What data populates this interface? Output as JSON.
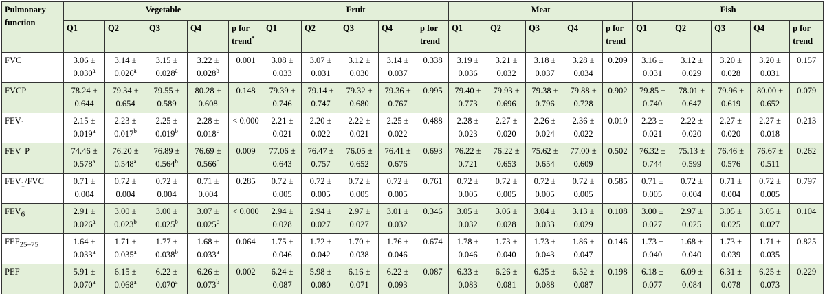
{
  "table": {
    "corner": "Pulmonary function",
    "groups": [
      {
        "name": "Vegetable",
        "columns": [
          "Q1",
          "Q2",
          "Q3",
          "Q4",
          {
            "text": "p for trend",
            "sup": "*"
          }
        ]
      },
      {
        "name": "Fruit",
        "columns": [
          "Q1",
          "Q2",
          "Q3",
          "Q4",
          {
            "text": "p for trend"
          }
        ]
      },
      {
        "name": "Meat",
        "columns": [
          "Q1",
          "Q2",
          "Q3",
          "Q4",
          {
            "text": "p for trend"
          }
        ]
      },
      {
        "name": "Fish",
        "columns": [
          "Q1",
          "Q2",
          "Q3",
          "Q4",
          {
            "text": "p for trend"
          }
        ]
      }
    ],
    "rows": [
      {
        "label": {
          "main": "FVC"
        },
        "groups": [
          {
            "q": [
              [
                "3.06 ±",
                "0.030",
                "a"
              ],
              [
                "3.14 ±",
                "0.026",
                "a"
              ],
              [
                "3.15 ±",
                "0.028",
                "a"
              ],
              [
                "3.22 ±",
                "0.028",
                "b"
              ]
            ],
            "p": "0.001"
          },
          {
            "q": [
              [
                "3.08 ±",
                "0.033"
              ],
              [
                "3.07 ±",
                "0.031"
              ],
              [
                "3.12 ±",
                "0.030"
              ],
              [
                "3.14 ±",
                "0.037"
              ]
            ],
            "p": "0.338"
          },
          {
            "q": [
              [
                "3.19 ±",
                "0.036"
              ],
              [
                "3.21 ±",
                "0.032"
              ],
              [
                "3.18 ±",
                "0.037"
              ],
              [
                "3.28 ±",
                "0.034"
              ]
            ],
            "p": "0.209"
          },
          {
            "q": [
              [
                "3.16 ±",
                "0.031"
              ],
              [
                "3.12 ±",
                "0.029"
              ],
              [
                "3.20 ±",
                "0.028"
              ],
              [
                "3.20 ±",
                "0.031"
              ]
            ],
            "p": "0.157"
          }
        ]
      },
      {
        "label": {
          "main": "FVCP"
        },
        "groups": [
          {
            "q": [
              [
                "78.24 ±",
                "0.644"
              ],
              [
                "79.34 ±",
                "0.654"
              ],
              [
                "79.55 ±",
                "0.589"
              ],
              [
                "80.28 ±",
                "0.608"
              ]
            ],
            "p": "0.148"
          },
          {
            "q": [
              [
                "79.39 ±",
                "0.746"
              ],
              [
                "79.14 ±",
                "0.747"
              ],
              [
                "79.32 ±",
                "0.680"
              ],
              [
                "79.36 ±",
                "0.767"
              ]
            ],
            "p": "0.995"
          },
          {
            "q": [
              [
                "79.40 ±",
                "0.773"
              ],
              [
                "79.93 ±",
                "0.696"
              ],
              [
                "79.38 ±",
                "0.796"
              ],
              [
                "79.88 ±",
                "0.728"
              ]
            ],
            "p": "0.902"
          },
          {
            "q": [
              [
                "79.85 ±",
                "0.740"
              ],
              [
                "78.01 ±",
                "0.647"
              ],
              [
                "79.96 ±",
                "0.619"
              ],
              [
                "80.00 ±",
                "0.652"
              ]
            ],
            "p": "0.079"
          }
        ]
      },
      {
        "label": {
          "main": "FEV",
          "sub": "1"
        },
        "groups": [
          {
            "q": [
              [
                "2.15 ±",
                "0.019",
                "a"
              ],
              [
                "2.23 ±",
                "0.017",
                "b"
              ],
              [
                "2.25 ±",
                "0.019",
                "b"
              ],
              [
                "2.28 ±",
                "0.018",
                "c"
              ]
            ],
            "p": "< 0.000"
          },
          {
            "q": [
              [
                "2.21 ±",
                "0.021"
              ],
              [
                "2.20 ±",
                "0.022"
              ],
              [
                "2.22 ±",
                "0.021"
              ],
              [
                "2.25 ±",
                "0.022"
              ]
            ],
            "p": "0.488"
          },
          {
            "q": [
              [
                "2.28 ±",
                "0.023"
              ],
              [
                "2.27 ±",
                "0.020"
              ],
              [
                "2.26 ±",
                "0.024"
              ],
              [
                "2.36 ±",
                "0.022"
              ]
            ],
            "p": "0.010"
          },
          {
            "q": [
              [
                "2.23 ±",
                "0.021"
              ],
              [
                "2.22 ±",
                "0.020"
              ],
              [
                "2.27 ±",
                "0.020"
              ],
              [
                "2.27 ±",
                "0.018"
              ]
            ],
            "p": "0.213"
          }
        ]
      },
      {
        "label": {
          "main": "FEV",
          "sub": "1",
          "rest": "P"
        },
        "groups": [
          {
            "q": [
              [
                "74.46 ±",
                "0.578",
                "a"
              ],
              [
                "76.20 ±",
                "0.548",
                "a"
              ],
              [
                "76.89 ±",
                "0.564",
                "b"
              ],
              [
                "76.69 ±",
                "0.566",
                "c"
              ]
            ],
            "p": "0.009"
          },
          {
            "q": [
              [
                "77.06 ±",
                "0.643"
              ],
              [
                "76.47 ±",
                "0.757"
              ],
              [
                "76.05 ±",
                "0.652"
              ],
              [
                "76.41 ±",
                "0.676"
              ]
            ],
            "p": "0.693"
          },
          {
            "q": [
              [
                "76.22 ±",
                "0.721"
              ],
              [
                "76.22 ±",
                "0.653"
              ],
              [
                "75.62 ±",
                "0.654"
              ],
              [
                "77.00 ±",
                "0.609"
              ]
            ],
            "p": "0.502"
          },
          {
            "q": [
              [
                "76.32 ±",
                "0.744"
              ],
              [
                "75.13 ±",
                "0.599"
              ],
              [
                "76.46 ±",
                "0.576"
              ],
              [
                "76.67 ±",
                "0.511"
              ]
            ],
            "p": "0.262"
          }
        ]
      },
      {
        "label": {
          "main": "FEV",
          "sub": "1",
          "rest": "/FVC"
        },
        "groups": [
          {
            "q": [
              [
                "0.71 ±",
                "0.004"
              ],
              [
                "0.72 ±",
                "0.004"
              ],
              [
                "0.72 ±",
                "0.004"
              ],
              [
                "0.71 ±",
                "0.004"
              ]
            ],
            "p": "0.285"
          },
          {
            "q": [
              [
                "0.72 ±",
                "0.005"
              ],
              [
                "0.72 ±",
                "0.005"
              ],
              [
                "0.72 ±",
                "0.005"
              ],
              [
                "0.72 ±",
                "0.005"
              ]
            ],
            "p": "0.761"
          },
          {
            "q": [
              [
                "0.72 ±",
                "0.005"
              ],
              [
                "0.72 ±",
                "0.005"
              ],
              [
                "0.72 ±",
                "0.005"
              ],
              [
                "0.72 ±",
                "0.005"
              ]
            ],
            "p": "0.585"
          },
          {
            "q": [
              [
                "0.71 ±",
                "0.005"
              ],
              [
                "0.72 ±",
                "0.004"
              ],
              [
                "0.71 ±",
                "0.004"
              ],
              [
                "0.72 ±",
                "0.005"
              ]
            ],
            "p": "0.797"
          }
        ]
      },
      {
        "label": {
          "main": "FEV",
          "sub": "6"
        },
        "groups": [
          {
            "q": [
              [
                "2.91 ±",
                "0.026",
                "a"
              ],
              [
                "3.00 ±",
                "0.023",
                "b"
              ],
              [
                "3.00 ±",
                "0.025",
                "b"
              ],
              [
                "3.07 ±",
                "0.025",
                "c"
              ]
            ],
            "p": "< 0.000"
          },
          {
            "q": [
              [
                "2.94 ±",
                "0.028"
              ],
              [
                "2.94 ±",
                "0.027"
              ],
              [
                "2.97 ±",
                "0.027"
              ],
              [
                "3.01 ±",
                "0.032"
              ]
            ],
            "p": "0.346"
          },
          {
            "q": [
              [
                "3.05 ±",
                "0.032"
              ],
              [
                "3.06 ±",
                "0.028"
              ],
              [
                "3.04 ±",
                "0.033"
              ],
              [
                "3.13 ±",
                "0.029"
              ]
            ],
            "p": "0.108"
          },
          {
            "q": [
              [
                "3.00 ±",
                "0.027"
              ],
              [
                "2.97 ±",
                "0.025"
              ],
              [
                "3.05 ±",
                "0.025"
              ],
              [
                "3.05 ±",
                "0.027"
              ]
            ],
            "p": "0.104"
          }
        ]
      },
      {
        "label": {
          "main": "FEF",
          "sub": "25–75"
        },
        "groups": [
          {
            "q": [
              [
                "1.64 ±",
                "0.033",
                "a"
              ],
              [
                "1.71 ±",
                "0.035",
                "a"
              ],
              [
                "1.77 ±",
                "0.038",
                "b"
              ],
              [
                "1.68 ±",
                "0.033",
                "a"
              ]
            ],
            "p": "0.064"
          },
          {
            "q": [
              [
                "1.75 ±",
                "0.046"
              ],
              [
                "1.72 ±",
                "0.042"
              ],
              [
                "1.70 ±",
                "0.038"
              ],
              [
                "1.76 ±",
                "0.046"
              ]
            ],
            "p": "0.674"
          },
          {
            "q": [
              [
                "1.78 ±",
                "0.046"
              ],
              [
                "1.73 ±",
                "0.040"
              ],
              [
                "1.73 ±",
                "0.043"
              ],
              [
                "1.86 ±",
                "0.047"
              ]
            ],
            "p": "0.146"
          },
          {
            "q": [
              [
                "1.73 ±",
                "0.040"
              ],
              [
                "1.68 ±",
                "0.040"
              ],
              [
                "1.73 ±",
                "0.039"
              ],
              [
                "1.71 ±",
                "0.035"
              ]
            ],
            "p": "0.825"
          }
        ]
      },
      {
        "label": {
          "main": "PEF"
        },
        "groups": [
          {
            "q": [
              [
                "5.91 ±",
                "0.070",
                "a"
              ],
              [
                "6.15 ±",
                "0.068",
                "a"
              ],
              [
                "6.22 ±",
                "0.070",
                "a"
              ],
              [
                "6.26 ±",
                "0.073",
                "b"
              ]
            ],
            "p": "0.002"
          },
          {
            "q": [
              [
                "6.24 ±",
                "0.087"
              ],
              [
                "5.98 ±",
                "0.080"
              ],
              [
                "6.16 ±",
                "0.071"
              ],
              [
                "6.22 ±",
                "0.093"
              ]
            ],
            "p": "0.087"
          },
          {
            "q": [
              [
                "6.33 ±",
                "0.083"
              ],
              [
                "6.26 ±",
                "0.081"
              ],
              [
                "6.35 ±",
                "0.088"
              ],
              [
                "6.52 ±",
                "0.087"
              ]
            ],
            "p": "0.198"
          },
          {
            "q": [
              [
                "6.18 ±",
                "0.077"
              ],
              [
                "6.09 ±",
                "0.084"
              ],
              [
                "6.31 ±",
                "0.078"
              ],
              [
                "6.25 ±",
                "0.073"
              ]
            ],
            "p": "0.229"
          }
        ]
      }
    ]
  }
}
